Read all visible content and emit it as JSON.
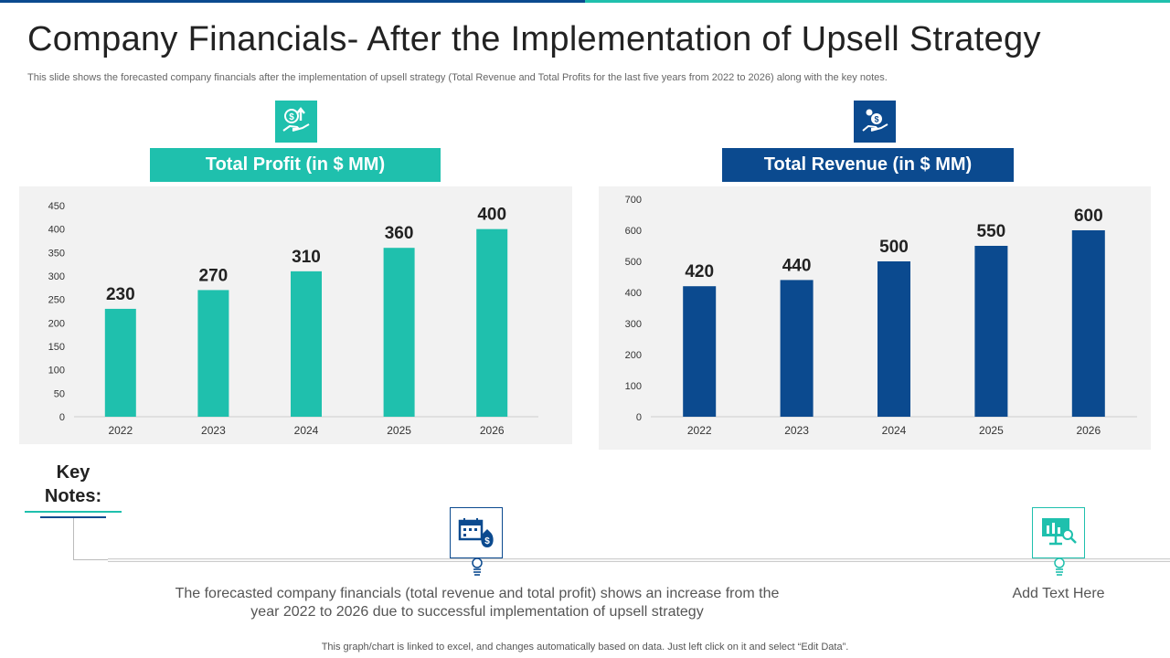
{
  "slide": {
    "title": "Company Financials- After the Implementation of Upsell Strategy",
    "subtitle": "This slide shows the forecasted company financials after the implementation of upsell strategy (Total Revenue and Total Profits for the last five years from 2022 to 2026) along with the key notes.",
    "footer": "This graph/chart is linked to excel, and changes automatically based on data. Just left click on it and select “Edit Data”."
  },
  "colors": {
    "teal": "#1fc0ad",
    "navy": "#0b4a8f"
  },
  "icons": {
    "profit": "hand-money-growth-icon",
    "revenue": "hand-coins-icon",
    "note1": "calendar-money-bag-icon",
    "note2": "presentation-analytics-icon"
  },
  "chart_data": [
    {
      "type": "bar",
      "title": "Total Profit (in $ MM)",
      "categories": [
        "2022",
        "2023",
        "2024",
        "2025",
        "2026"
      ],
      "values": [
        230,
        270,
        310,
        360,
        400
      ],
      "ylim": [
        0,
        450
      ],
      "yticks": [
        0,
        50,
        100,
        150,
        200,
        250,
        300,
        350,
        400,
        450
      ],
      "xlabel": "",
      "ylabel": "",
      "color": "#1fc0ad",
      "grid": false
    },
    {
      "type": "bar",
      "title": "Total Revenue (in $ MM)",
      "categories": [
        "2022",
        "2023",
        "2024",
        "2025",
        "2026"
      ],
      "values": [
        420,
        440,
        500,
        550,
        600
      ],
      "ylim": [
        0,
        700
      ],
      "yticks": [
        0,
        100,
        200,
        300,
        400,
        500,
        600,
        700
      ],
      "xlabel": "",
      "ylabel": "",
      "color": "#0b4a8f",
      "grid": false
    }
  ],
  "key_notes": {
    "heading_line1": "Key",
    "heading_line2": "Notes:",
    "notes": [
      "The forecasted company financials (total revenue and total profit) shows an increase from the year 2022 to 2026 due to successful implementation of upsell strategy",
      "Add Text Here"
    ]
  }
}
